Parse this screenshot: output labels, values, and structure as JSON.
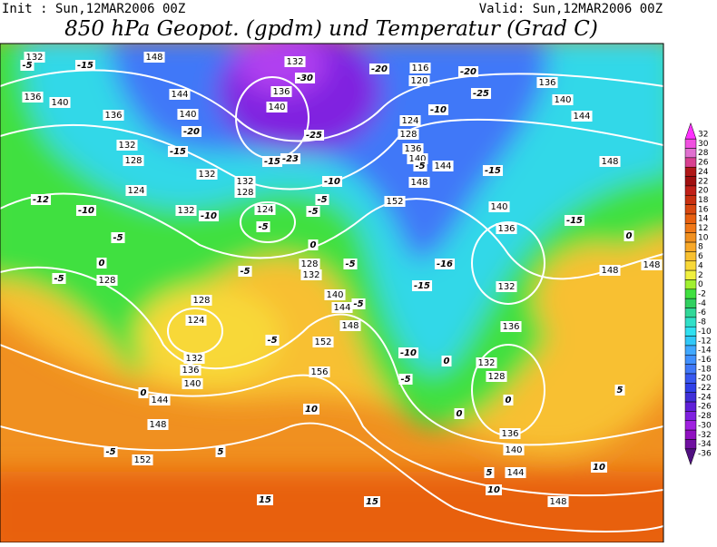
{
  "header": {
    "init": "Init : Sun,12MAR2006 00Z",
    "valid": "Valid: Sun,12MAR2006 00Z",
    "title": "850 hPa Geopot. (gpdm) und Temperatur (Grad C)"
  },
  "colorbar": {
    "levels": [
      32,
      30,
      28,
      26,
      24,
      22,
      20,
      18,
      16,
      14,
      12,
      10,
      8,
      6,
      4,
      2,
      0,
      -2,
      -4,
      -6,
      -8,
      -10,
      -12,
      -14,
      -16,
      -18,
      -20,
      -22,
      -24,
      -26,
      -28,
      -30,
      -32,
      -34,
      -36
    ],
    "colors": [
      "#ff30ff",
      "#f050e0",
      "#e070d0",
      "#d84090",
      "#b01818",
      "#a01010",
      "#c02018",
      "#c83010",
      "#d84810",
      "#e86010",
      "#f07818",
      "#f09020",
      "#f8a828",
      "#f8c030",
      "#f8d838",
      "#f0f040",
      "#a0f030",
      "#40e040",
      "#30d060",
      "#30d898",
      "#30e0c8",
      "#30e0f0",
      "#30c8f8",
      "#40a8ff",
      "#4090ff",
      "#4078f8",
      "#3858f0",
      "#3040e8",
      "#4030d8",
      "#6020d8",
      "#8020e0",
      "#a020e0",
      "#9010c0",
      "#7010a0",
      "#501080"
    ]
  },
  "map": {
    "geopotential_labels": [
      132,
      148,
      132,
      116,
      120,
      136,
      136,
      144,
      136,
      140,
      140,
      140,
      140,
      136,
      124,
      144,
      128,
      136,
      132,
      128,
      140,
      132,
      144,
      148,
      132,
      128,
      124,
      148,
      152,
      132,
      124,
      140,
      136,
      148,
      148,
      128,
      132,
      128,
      132,
      140,
      144,
      148,
      128,
      124,
      136,
      152,
      132,
      136,
      132,
      128,
      140,
      156,
      144,
      136,
      148,
      140,
      152,
      144,
      148
    ],
    "temperature_labels": [
      -5,
      -15,
      -30,
      -20,
      -20,
      -25,
      -10,
      -20,
      -25,
      -15,
      -23,
      -15,
      -5,
      -15,
      -10,
      -12,
      -10,
      -10,
      -5,
      -5,
      -5,
      -15,
      -5,
      0,
      0,
      -5,
      -16,
      0,
      -5,
      -5,
      -15,
      -5,
      -5,
      -10,
      0,
      -5,
      0,
      0,
      10,
      0,
      -5,
      5,
      5,
      10,
      10,
      15,
      15,
      5
    ]
  }
}
